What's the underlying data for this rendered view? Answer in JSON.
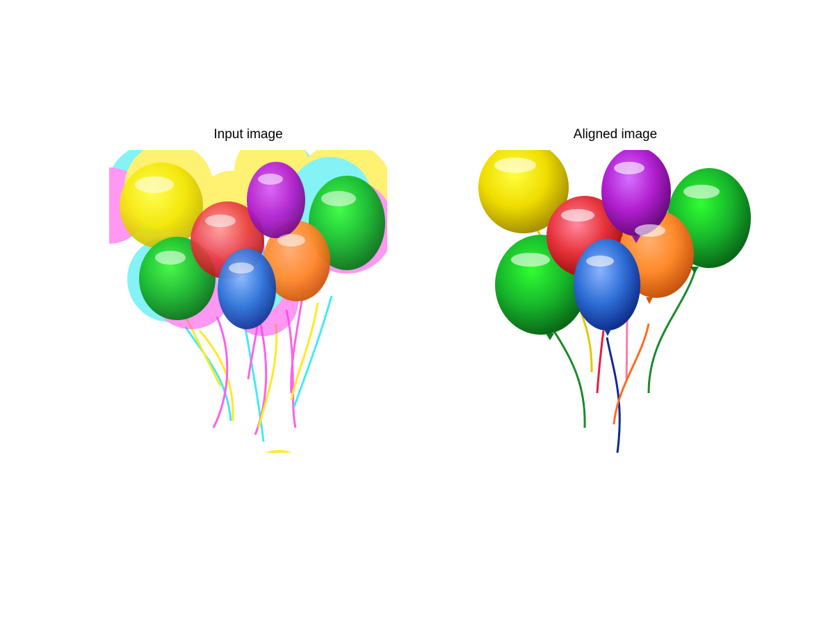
{
  "panels": [
    {
      "title": "Input image"
    },
    {
      "title": "Aligned image"
    }
  ],
  "colors": {
    "yellow": "#f2e600",
    "purple": "#b21fd0",
    "green": "#17b82c",
    "red": "#e8343c",
    "orange": "#ff8a2a",
    "blue": "#2f6fd6",
    "cyan": "#22e8f0",
    "magenta": "#ff45e8"
  }
}
